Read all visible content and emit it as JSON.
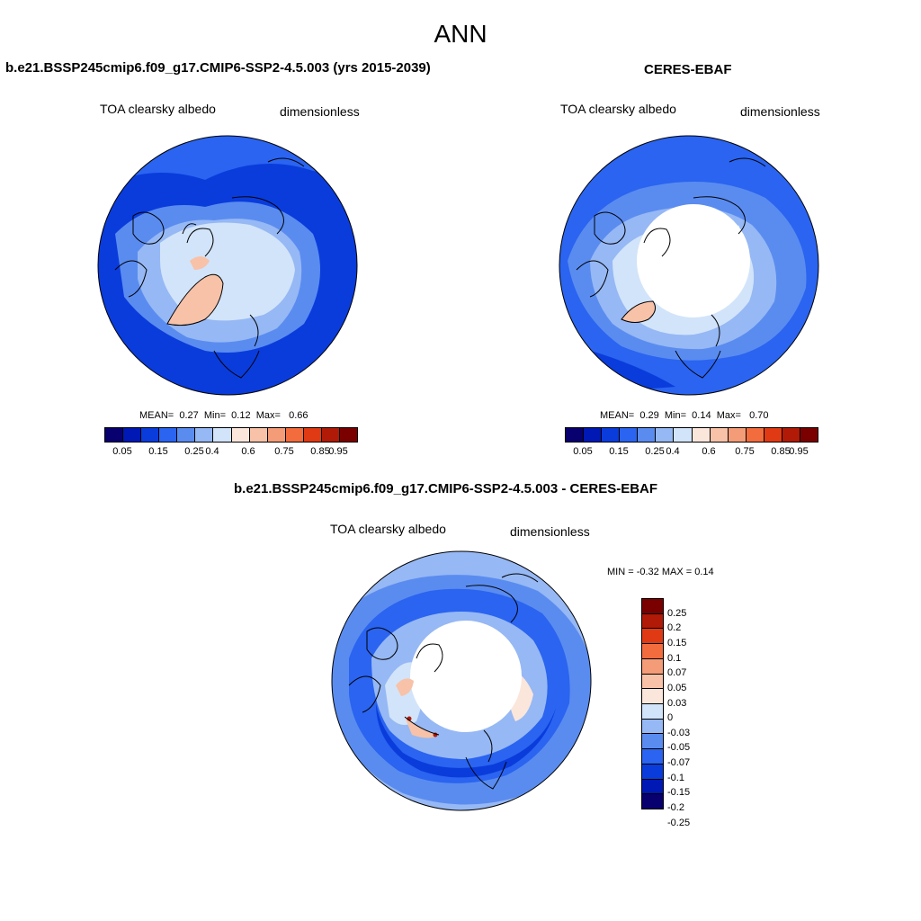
{
  "title": "ANN",
  "colors": {
    "abs_levels": [
      "#08006e",
      "#0018b4",
      "#0a3cdc",
      "#2a64f0",
      "#5a8cf0",
      "#96b8f4",
      "#d2e4fa",
      "#fbe6dc",
      "#f7c2a8",
      "#f49c78",
      "#f26c3e",
      "#e03a14",
      "#b01a06",
      "#7a0000"
    ],
    "diff_levels": [
      "#7a0000",
      "#b01a06",
      "#e03a14",
      "#f26c3e",
      "#f49c78",
      "#f7c2a8",
      "#fbe6dc",
      "#d2e4fa",
      "#96b8f4",
      "#5a8cf0",
      "#2a64f0",
      "#0a3cdc",
      "#0018b4",
      "#08006e"
    ]
  },
  "panels": {
    "model": {
      "title": "b.e21.BSSP245cmip6.f09_g17.CMIP6-SSP2-4.5.003 (yrs 2015-2039)",
      "variable": "TOA clearsky albedo",
      "units": "dimensionless",
      "stats": {
        "mean_label": "MEAN=",
        "mean": "0.27",
        "min_label": "Min=",
        "min": "0.12",
        "max_label": "Max=",
        "max": "0.66"
      },
      "ticks": [
        "0.05",
        "0.15",
        "0.25",
        "0.4",
        "0.6",
        "0.75",
        "0.85",
        "0.95"
      ]
    },
    "obs": {
      "title": "CERES-EBAF",
      "variable": "TOA clearsky albedo",
      "units": "dimensionless",
      "stats": {
        "mean_label": "MEAN=",
        "mean": "0.29",
        "min_label": "Min=",
        "min": "0.14",
        "max_label": "Max=",
        "max": "0.70"
      },
      "ticks": [
        "0.05",
        "0.15",
        "0.25",
        "0.4",
        "0.6",
        "0.75",
        "0.85",
        "0.95"
      ]
    },
    "diff": {
      "title": "b.e21.BSSP245cmip6.f09_g17.CMIP6-SSP2-4.5.003 - CERES-EBAF",
      "variable": "TOA clearsky albedo",
      "units": "dimensionless",
      "stats": "MIN =  -0.32 MAX =   0.14",
      "ticks": [
        "0.25",
        "0.2",
        "0.15",
        "0.1",
        "0.07",
        "0.05",
        "0.03",
        "0",
        "-0.03",
        "-0.05",
        "-0.07",
        "-0.1",
        "-0.15",
        "-0.2",
        "-0.25"
      ]
    }
  }
}
